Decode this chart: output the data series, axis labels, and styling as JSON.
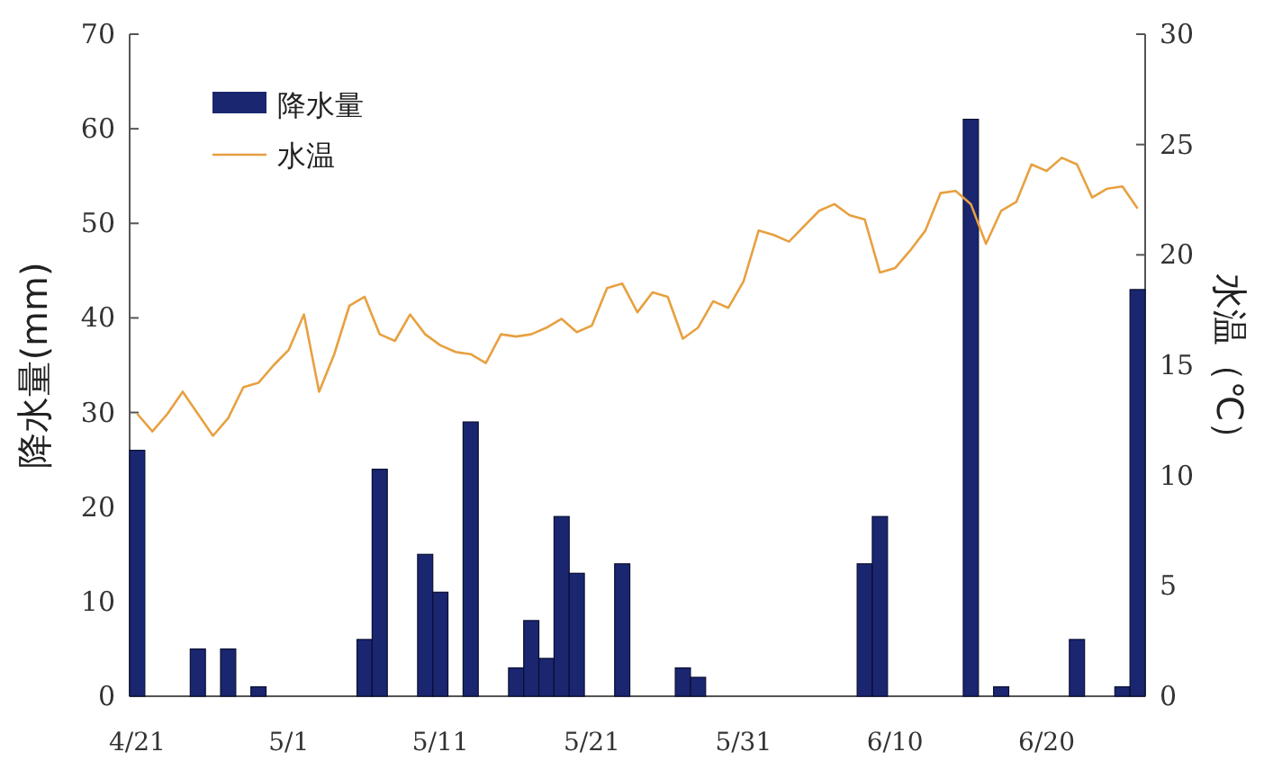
{
  "chart_data": {
    "type": "bar",
    "ylabel": "降水量(mm)",
    "y2label": "水温（℃）",
    "legend": "top left",
    "categories": [
      "4/21",
      null,
      null,
      null,
      null,
      null,
      null,
      null,
      null,
      null,
      "5/1",
      null,
      null,
      null,
      null,
      null,
      null,
      null,
      null,
      null,
      "5/11",
      null,
      null,
      null,
      null,
      null,
      null,
      null,
      null,
      null,
      "5/21",
      null,
      null,
      null,
      null,
      null,
      null,
      null,
      null,
      null,
      "5/31",
      null,
      null,
      null,
      null,
      null,
      null,
      null,
      null,
      null,
      "6/10",
      null,
      null,
      null,
      null,
      null,
      null,
      null,
      null,
      null,
      "6/20",
      null,
      null,
      null,
      null,
      null,
      null
    ],
    "series": [
      {
        "name": "降水量",
        "color": "#1a2670",
        "values": [
          26,
          0,
          0,
          0,
          5,
          0,
          5,
          0,
          1,
          0,
          0,
          0,
          0,
          0,
          0,
          6,
          24,
          0,
          0,
          15,
          11,
          0,
          29,
          0,
          0,
          3,
          8,
          4,
          19,
          13,
          0,
          0,
          14,
          0,
          0,
          0,
          3,
          2,
          0,
          0,
          0,
          0,
          0,
          0,
          0,
          0,
          0,
          0,
          14,
          19,
          0,
          0,
          0,
          0,
          0,
          61,
          0,
          1,
          0,
          0,
          0,
          0,
          6,
          0,
          0,
          1,
          43
        ]
      },
      {
        "name": "水温",
        "type": "line",
        "axis": "y2",
        "color": "#e8a040",
        "values": [
          12.8,
          12.0,
          12.8,
          13.8,
          12.8,
          11.8,
          12.6,
          14.0,
          14.2,
          15.0,
          15.7,
          17.3,
          13.8,
          15.5,
          17.7,
          18.1,
          16.4,
          16.1,
          17.3,
          16.4,
          15.9,
          15.6,
          15.5,
          15.1,
          16.4,
          16.3,
          16.4,
          16.7,
          17.1,
          16.5,
          16.8,
          18.5,
          18.7,
          17.4,
          18.3,
          18.1,
          16.2,
          16.7,
          17.9,
          17.6,
          18.8,
          21.1,
          20.9,
          20.6,
          21.3,
          22.0,
          22.3,
          21.8,
          21.6,
          19.2,
          19.4,
          20.2,
          21.1,
          22.8,
          22.9,
          22.3,
          20.5,
          22.0,
          22.4,
          24.1,
          23.8,
          24.4,
          24.1,
          22.6,
          23.0,
          23.1,
          22.1
        ]
      }
    ],
    "ylim": [
      0,
      70
    ],
    "yticks": [
      0,
      10,
      20,
      30,
      40,
      50,
      60,
      70
    ],
    "y2lim": [
      0,
      30
    ],
    "y2ticks": [
      0,
      5,
      10,
      15,
      20,
      25,
      30
    ]
  }
}
